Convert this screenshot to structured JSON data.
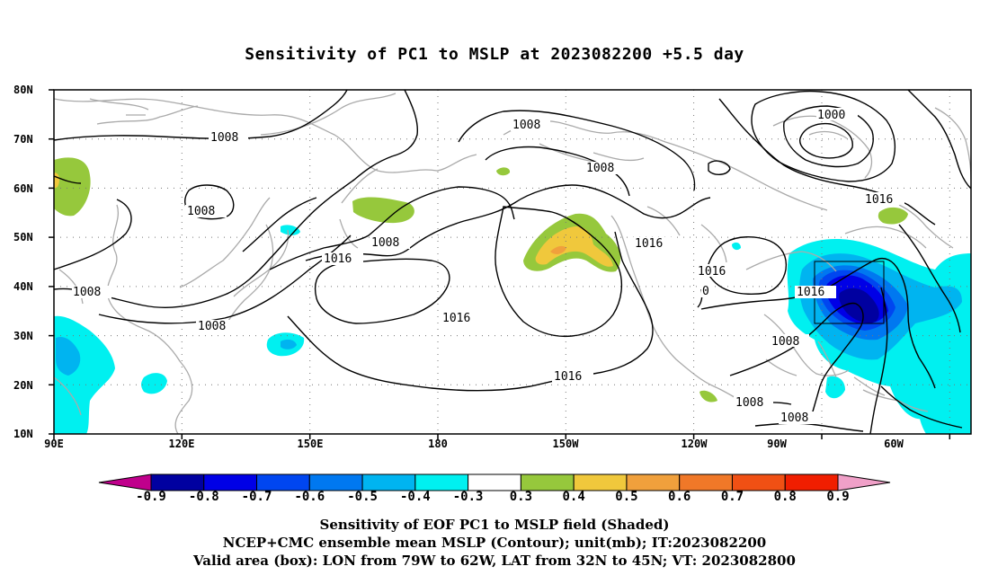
{
  "title": "Sensitivity of PC1 to MSLP at 2023082200 +5.5 day",
  "map": {
    "lat_labels": [
      "80N",
      "70N",
      "60N",
      "50N",
      "40N",
      "30N",
      "20N",
      "10N"
    ],
    "lon_labels": [
      "90E",
      "120E",
      "150E",
      "180",
      "150W",
      "120W",
      "90W",
      "60W"
    ],
    "lon_range_deg_east": [
      90,
      305
    ],
    "lat_range": [
      10,
      80
    ],
    "grid": true,
    "valid_box": {
      "lon_w": 79,
      "lon_e": 62,
      "lat_s": 32,
      "lat_n": 45
    },
    "contour_labels": [
      "1008",
      "1008",
      "1000",
      "1008",
      "1008",
      "1016",
      "1016",
      "1008",
      "1016",
      "1016",
      "1016",
      "1008",
      "1016",
      "0",
      "1008",
      "1008",
      "1008",
      "1016",
      "1008"
    ],
    "colors": {
      "neg_09": "#c0008c",
      "neg_08": "#0000b0",
      "neg_07": "#0000f0",
      "neg_06": "#0050f0",
      "neg_05": "#0078f0",
      "neg_04": "#00b4f0",
      "neg_03": "#00f0f0",
      "white": "#ffffff",
      "pos_03": "#96c83c",
      "pos_04": "#f0c83c",
      "pos_05": "#f0a03c",
      "pos_06": "#f07828",
      "pos_07": "#f05014",
      "pos_08": "#f01e00",
      "pos_09": "#f0a0c8",
      "coast": "#aaaaaa",
      "contour": "#000000"
    }
  },
  "colorbar": {
    "labels": [
      "-0.9",
      "-0.8",
      "-0.7",
      "-0.6",
      "-0.5",
      "-0.4",
      "-0.3",
      "0.3",
      "0.4",
      "0.5",
      "0.6",
      "0.7",
      "0.8",
      "0.9"
    ],
    "colors": [
      "#0000a0",
      "#0000e6",
      "#0046f0",
      "#0078f0",
      "#00b4f0",
      "#00f0f0",
      "#ffffff",
      "#96c83c",
      "#f0c83c",
      "#f0a03c",
      "#f07828",
      "#f05014",
      "#f01e00"
    ],
    "low_arrow_color": "#c0008c",
    "high_arrow_color": "#f0a0c8"
  },
  "captions": {
    "line1": "Sensitivity of EOF PC1 to MSLP field (Shaded)",
    "line2": "NCEP+CMC ensemble mean MSLP (Contour); unit(mb); IT:2023082200",
    "line3": "Valid area (box): LON from 79W to 62W, LAT from 32N to 45N; VT: 2023082800"
  }
}
